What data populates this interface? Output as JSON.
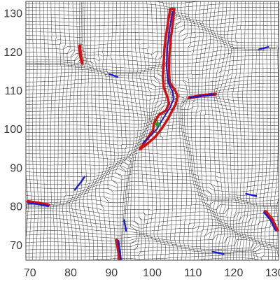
{
  "chart_data": {
    "type": "line",
    "title": "",
    "xlabel": "",
    "ylabel": "",
    "xlim": [
      69,
      131
    ],
    "ylim": [
      66,
      133
    ],
    "x_ticks": [
      70,
      80,
      90,
      100,
      110,
      120,
      130
    ],
    "y_ticks": [
      70,
      80,
      90,
      100,
      110,
      120,
      130
    ],
    "grid": false,
    "mesh": {
      "style": "deformed lattice",
      "color": "#1a1a1a",
      "attractors": [
        {
          "x": 103.5,
          "y": 110,
          "strength": 7,
          "spread": 7
        },
        {
          "x": 100,
          "y": 101,
          "strength": 6,
          "spread": 6
        },
        {
          "x": 95,
          "y": 93,
          "strength": 5,
          "spread": 6
        },
        {
          "x": 84,
          "y": 116,
          "strength": 4,
          "spread": 6
        },
        {
          "x": 75,
          "y": 80,
          "strength": 4,
          "spread": 6
        },
        {
          "x": 112,
          "y": 108,
          "strength": 4,
          "spread": 6
        },
        {
          "x": 122,
          "y": 78,
          "strength": 4,
          "spread": 7
        },
        {
          "x": 119,
          "y": 68,
          "strength": 4,
          "spread": 7
        },
        {
          "x": 93,
          "y": 70,
          "strength": 4,
          "spread": 6
        }
      ],
      "ridges": [
        {
          "points": [
            [
              104.5,
              130.5
            ],
            [
              103.8,
              124
            ],
            [
              103.5,
              118
            ],
            [
              103.6,
              112
            ],
            [
              105.2,
              108.5
            ],
            [
              106.5,
              107.2
            ],
            [
              107,
              106
            ]
          ]
        },
        {
          "points": [
            [
              107,
              106
            ],
            [
              110,
              108.5
            ],
            [
              116,
              109
            ]
          ]
        },
        {
          "points": [
            [
              107,
              106
            ],
            [
              108,
              100
            ],
            [
              109.5,
              94
            ],
            [
              110,
              88
            ],
            [
              112,
              82
            ],
            [
              116,
              76
            ],
            [
              121,
              73
            ],
            [
              128,
              70
            ],
            [
              131,
              69
            ]
          ]
        },
        {
          "points": [
            [
              99,
              102
            ],
            [
              97,
              97
            ],
            [
              95,
              93
            ],
            [
              90,
              90
            ],
            [
              85,
              85
            ],
            [
              80,
              81
            ],
            [
              75,
              80
            ],
            [
              69,
              80
            ]
          ]
        },
        {
          "points": [
            [
              95,
              93
            ],
            [
              94,
              86
            ],
            [
              93,
              78
            ],
            [
              92.5,
              72
            ],
            [
              92,
              66
            ]
          ]
        },
        {
          "points": [
            [
              103.5,
              118
            ],
            [
              96,
              115
            ],
            [
              90,
              114
            ],
            [
              84,
              116
            ],
            [
              82.5,
              123
            ],
            [
              83,
              133
            ]
          ]
        },
        {
          "points": [
            [
              84,
              116
            ],
            [
              77,
              117
            ],
            [
              69,
              117
            ]
          ]
        },
        {
          "points": [
            [
              112,
              82
            ],
            [
              120,
              83
            ],
            [
              126,
              81
            ],
            [
              131,
              80
            ]
          ]
        },
        {
          "points": [
            [
              104.5,
              130.5
            ],
            [
              112,
              127
            ],
            [
              120,
              121
            ],
            [
              126,
              120.5
            ],
            [
              131,
              121
            ]
          ]
        },
        {
          "points": [
            [
              98,
              73
            ],
            [
              105,
              70
            ],
            [
              112,
              68
            ],
            [
              119,
              67.5
            ],
            [
              125,
              68
            ]
          ]
        }
      ]
    },
    "highlighted_curves": [
      {
        "color": "#d40f0f",
        "role": "outline",
        "points": [
          [
            105.4,
            131
          ],
          [
            105,
            127
          ],
          [
            104.5,
            123
          ],
          [
            104.2,
            119
          ],
          [
            104.1,
            115
          ],
          [
            104.3,
            112
          ],
          [
            105.6,
            110
          ],
          [
            106.2,
            108.5
          ],
          [
            105.8,
            106.5
          ],
          [
            104.8,
            104.5
          ],
          [
            103.8,
            102.5
          ],
          [
            102.6,
            100.5
          ],
          [
            100.8,
            98
          ],
          [
            98.4,
            95.8
          ],
          [
            96.8,
            94.6
          ],
          [
            98.6,
            97.2
          ],
          [
            100.2,
            99.6
          ],
          [
            100.4,
            101.4
          ],
          [
            101.6,
            103.6
          ],
          [
            103.4,
            104.8
          ],
          [
            104.1,
            106.6
          ],
          [
            103.6,
            108.6
          ],
          [
            102.8,
            110.8
          ],
          [
            102.6,
            113.5
          ],
          [
            102.8,
            117
          ],
          [
            103,
            121
          ],
          [
            103.5,
            125
          ],
          [
            104.4,
            131
          ]
        ]
      },
      {
        "color": "#1b1bd6",
        "role": "core",
        "points": [
          [
            105,
            130.5
          ],
          [
            104.3,
            126
          ],
          [
            103.7,
            121
          ],
          [
            103.5,
            116
          ],
          [
            103.9,
            112
          ],
          [
            105,
            109.7
          ],
          [
            105.2,
            107.6
          ],
          [
            104.3,
            105.4
          ],
          [
            103.2,
            103.6
          ],
          [
            102.2,
            101.9
          ],
          [
            101.2,
            100
          ],
          [
            99.2,
            97.8
          ],
          [
            97.6,
            96.2
          ]
        ]
      },
      {
        "color": "#d40f0f",
        "role": "segment",
        "points": [
          [
            109,
            108
          ],
          [
            112,
            108.6
          ],
          [
            115.5,
            109
          ]
        ]
      },
      {
        "color": "#1b1bd6",
        "role": "segment",
        "points": [
          [
            109.3,
            108.1
          ],
          [
            112,
            108.5
          ],
          [
            115,
            108.9
          ]
        ]
      },
      {
        "color": "#d40f0f",
        "role": "segment",
        "points": [
          [
            82.2,
            121.5
          ],
          [
            82.4,
            119
          ],
          [
            82.8,
            117
          ]
        ]
      },
      {
        "color": "#1b1bd6",
        "role": "segment",
        "points": [
          [
            89.5,
            114.2
          ],
          [
            91.5,
            113.4
          ]
        ]
      },
      {
        "color": "#d40f0f",
        "role": "segment",
        "points": [
          [
            69.5,
            81.2
          ],
          [
            72,
            80.8
          ],
          [
            74.5,
            80.3
          ]
        ]
      },
      {
        "color": "#1b1bd6",
        "role": "segment",
        "points": [
          [
            69.5,
            80.8
          ],
          [
            72,
            80.5
          ],
          [
            74.5,
            80
          ]
        ]
      },
      {
        "color": "#1b1bd6",
        "role": "segment",
        "points": [
          [
            81,
            84.2
          ],
          [
            82.5,
            86.2
          ],
          [
            83.4,
            87.6
          ]
        ]
      },
      {
        "color": "#1b1bd6",
        "role": "segment",
        "points": [
          [
            126.2,
            120.6
          ],
          [
            128.5,
            121.2
          ]
        ]
      },
      {
        "color": "#d40f0f",
        "role": "segment",
        "points": [
          [
            127.8,
            78.6
          ],
          [
            129.4,
            76.6
          ],
          [
            130.6,
            73.8
          ]
        ]
      },
      {
        "color": "#1b1bd6",
        "role": "segment",
        "points": [
          [
            127.4,
            78.4
          ],
          [
            129,
            76.4
          ],
          [
            130.2,
            73.8
          ]
        ]
      },
      {
        "color": "#1b1bd6",
        "role": "segment",
        "points": [
          [
            114.8,
            68.2
          ],
          [
            117.5,
            67.6
          ]
        ]
      },
      {
        "color": "#1b1bd6",
        "role": "segment",
        "points": [
          [
            123,
            83.2
          ],
          [
            125.5,
            82.6
          ]
        ]
      },
      {
        "color": "#d40f0f",
        "role": "segment",
        "points": [
          [
            91.3,
            71.2
          ],
          [
            91.7,
            68.6
          ],
          [
            92,
            66.2
          ]
        ]
      },
      {
        "color": "#1b1bd6",
        "role": "segment",
        "points": [
          [
            91.7,
            71
          ],
          [
            92,
            68.6
          ],
          [
            92.3,
            66.2
          ]
        ]
      },
      {
        "color": "#1b1bd6",
        "role": "segment",
        "points": [
          [
            93.1,
            76.4
          ],
          [
            93.6,
            73.6
          ]
        ]
      }
    ],
    "markers": [
      {
        "x": 101.3,
        "y": 101.2,
        "color": "#1a9a1a",
        "shape": "crosshair"
      }
    ]
  }
}
